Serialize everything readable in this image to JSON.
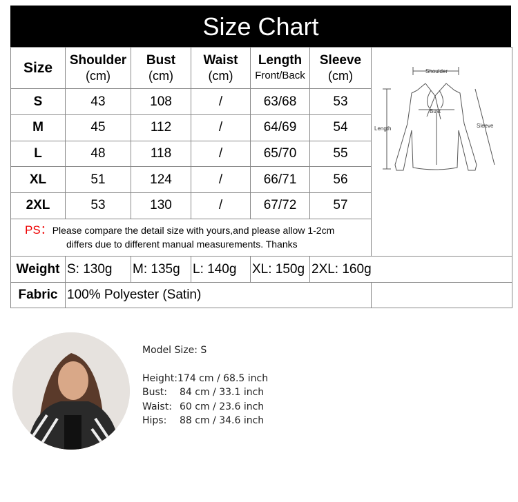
{
  "title": "Size Chart",
  "headers": [
    {
      "label": "Size",
      "unit": ""
    },
    {
      "label": "Shoulder",
      "unit": "(cm)"
    },
    {
      "label": "Bust",
      "unit": "(cm)"
    },
    {
      "label": "Waist",
      "unit": "(cm)"
    },
    {
      "label": "Length",
      "unit": "Front/Back"
    },
    {
      "label": "Sleeve",
      "unit": "(cm)"
    }
  ],
  "rows": [
    [
      "S",
      "43",
      "108",
      "/",
      "63/68",
      "53"
    ],
    [
      "M",
      "45",
      "112",
      "/",
      "64/69",
      "54"
    ],
    [
      "L",
      "48",
      "118",
      "/",
      "65/70",
      "55"
    ],
    [
      "XL",
      "51",
      "124",
      "/",
      "66/71",
      "56"
    ],
    [
      "2XL",
      "53",
      "130",
      "/",
      "67/72",
      "57"
    ]
  ],
  "note": {
    "prefix": "PS：",
    "line1": "Please compare the detail size with yours,and please allow 1-2cm",
    "line2": "differs due to different manual measurements. Thanks",
    "prefix_color": "#e00000"
  },
  "diagram": {
    "shoulder": "Shoulder",
    "bust": "Bust",
    "length": "Length",
    "sleeve": "Sleeve"
  },
  "weight": {
    "label": "Weight",
    "values": [
      "S: 130g",
      "M: 135g",
      "L: 140g",
      "XL: 150g",
      "2XL: 160g"
    ]
  },
  "fabric": {
    "label": "Fabric",
    "value": "100% Polyester (Satin)"
  },
  "model": {
    "title": "Model Size: S",
    "stats": [
      {
        "k": "Height:",
        "v": "174 cm / 68.5 inch"
      },
      {
        "k": "Bust:",
        "v": "84 cm / 33.1 inch"
      },
      {
        "k": "Waist:",
        "v": "60 cm / 23.6 inch"
      },
      {
        "k": "Hips:",
        "v": "88 cm / 34.6 inch"
      }
    ]
  }
}
